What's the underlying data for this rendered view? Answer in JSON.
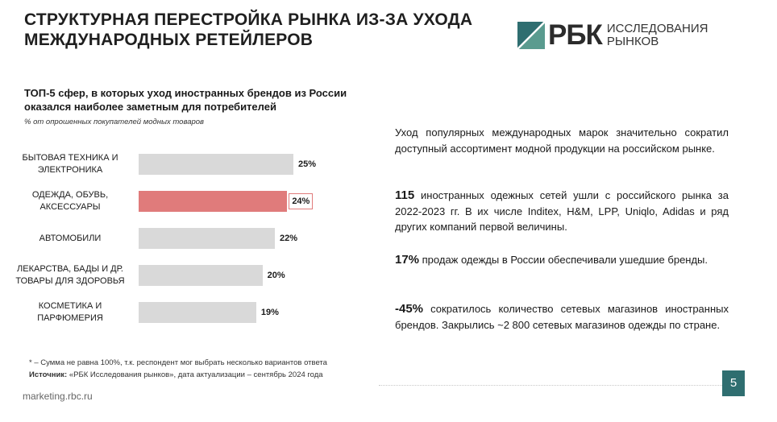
{
  "header": {
    "title": "СТРУКТУРНАЯ ПЕРЕСТРОЙКА РЫНКА ИЗ-ЗА УХОДА МЕЖДУНАРОДНЫХ РЕТЕЙЛЕРОВ",
    "logo": {
      "main": "РБК",
      "line1": "ИССЛЕДОВАНИЯ",
      "line2": "РЫНКОВ"
    }
  },
  "chart_data": {
    "type": "bar",
    "orientation": "horizontal",
    "title": "ТОП-5 сфер, в которых уход иностранных брендов из России оказался наиболее заметным для потребителей",
    "subtitle": "% от опрошенных покупателей модных товаров",
    "categories": [
      [
        "БЫТОВАЯ ТЕХНИКА И",
        "ЭЛЕКТРОНИКА"
      ],
      [
        "ОДЕЖДА, ОБУВЬ,",
        "АКСЕССУАРЫ"
      ],
      [
        "АВТОМОБИЛИ"
      ],
      [
        "ЛЕКАРСТВА, БАДЫ И ДР.",
        "ТОВАРЫ ДЛЯ ЗДОРОВЬЯ"
      ],
      [
        "КОСМЕТИКА И",
        "ПАРФЮМЕРИЯ"
      ]
    ],
    "values": [
      25,
      24,
      22,
      20,
      19
    ],
    "value_labels": [
      "25%",
      "24%",
      "22%",
      "20%",
      "19%"
    ],
    "highlight_index": 1,
    "colors": {
      "default": "#d9d9d9",
      "highlight": "#e07b7b"
    },
    "xlim": [
      0,
      25
    ],
    "grid": false,
    "legend": "none"
  },
  "notes": {
    "footnote": "* – Сумма не равна 100%, т.к. респондент мог выбрать несколько вариантов ответа",
    "source_label": "Источник:",
    "source_text": " «РБК Исследования рынков», дата актуализации – сентябрь 2024 года"
  },
  "facts": [
    {
      "big": "",
      "text": "Уход популярных международных марок значительно сократил доступный ассортимент модной продукции на российском рынке."
    },
    {
      "big": "115",
      "text": " иностранных одежных сетей ушли с российского рынка за 2022-2023 гг. В их числе Inditex, H&M, LPP, Uniqlo, Adidas и ряд других компаний первой величины."
    },
    {
      "big": "17%",
      "text": " продаж одежды в России обеспечивали ушедшие бренды."
    },
    {
      "big": "-45%",
      "text": " сократилось количество сетевых магазинов иностранных брендов. Закрылись ~2 800 сетевых магазинов одежды по стране."
    }
  ],
  "footer": {
    "site": "marketing.rbc.ru",
    "page": "5"
  },
  "colors": {
    "accent": "#2f6e70",
    "highlight": "#e07b7b"
  }
}
